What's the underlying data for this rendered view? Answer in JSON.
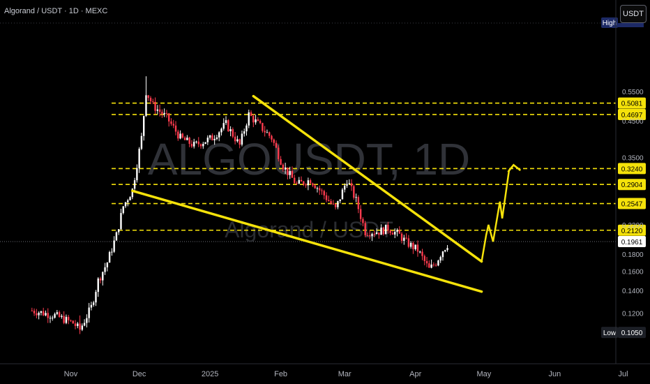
{
  "header": {
    "title": "Algorand / USDT · 1D · MEXC"
  },
  "unit_button": "USDT",
  "watermark": {
    "symbol": "ALGOUSDT, 1D",
    "name": "Algorand / USDT"
  },
  "colors": {
    "up": "#ffffff",
    "down": "#ff3b4e",
    "accent": "#f5e20a",
    "bg": "#000000"
  },
  "chart_data": {
    "type": "candlestick",
    "title": "Algorand / USDT · 1D · MEXC",
    "y_scale": "log",
    "ylim": [
      0.1,
      0.62
    ],
    "y_tick_labels": [
      "0.5500",
      "0.4500",
      "0.3500",
      "0.2200",
      "0.1800",
      "0.1600",
      "0.1400",
      "0.1200"
    ],
    "x_tick_labels": [
      "Nov",
      "Dec",
      "2025",
      "Feb",
      "Mar",
      "Apr",
      "May",
      "Jun",
      "Jul"
    ],
    "price_levels": [
      {
        "label": "0.5081",
        "value": 0.5081
      },
      {
        "label": "0.4697",
        "value": 0.4697
      },
      {
        "label": "0.3240",
        "value": 0.324
      },
      {
        "label": "0.2904",
        "value": 0.2904
      },
      {
        "label": "0.2547",
        "value": 0.2547
      },
      {
        "label": "0.2120",
        "value": 0.212
      }
    ],
    "current_price": {
      "label": "0.1961",
      "value": 0.1961
    },
    "high": {
      "tag": "High",
      "value": 0.611
    },
    "low": {
      "tag": "Low",
      "label": "0.1050",
      "value": 0.105
    },
    "close_path": [
      [
        "2024-10-15",
        0.122
      ],
      [
        "2024-10-25",
        0.118
      ],
      [
        "2024-11-02",
        0.112
      ],
      [
        "2024-11-05",
        0.107
      ],
      [
        "2024-11-10",
        0.125
      ],
      [
        "2024-11-13",
        0.15
      ],
      [
        "2024-11-17",
        0.17
      ],
      [
        "2024-11-21",
        0.205
      ],
      [
        "2024-11-24",
        0.25
      ],
      [
        "2024-11-28",
        0.28
      ],
      [
        "2024-12-02",
        0.4
      ],
      [
        "2024-12-04",
        0.55
      ],
      [
        "2024-12-07",
        0.5
      ],
      [
        "2024-12-13",
        0.46
      ],
      [
        "2024-12-19",
        0.4
      ],
      [
        "2024-12-25",
        0.38
      ],
      [
        "2025-01-02",
        0.4
      ],
      [
        "2025-01-08",
        0.44
      ],
      [
        "2025-01-14",
        0.38
      ],
      [
        "2025-01-18",
        0.47
      ],
      [
        "2025-01-22",
        0.44
      ],
      [
        "2025-01-28",
        0.4
      ],
      [
        "2025-02-02",
        0.33
      ],
      [
        "2025-02-08",
        0.29
      ],
      [
        "2025-02-14",
        0.3
      ],
      [
        "2025-02-20",
        0.27
      ],
      [
        "2025-02-25",
        0.245
      ],
      [
        "2025-03-02",
        0.3
      ],
      [
        "2025-03-06",
        0.26
      ],
      [
        "2025-03-10",
        0.21
      ],
      [
        "2025-03-16",
        0.21
      ],
      [
        "2025-03-20",
        0.215
      ],
      [
        "2025-03-25",
        0.205
      ],
      [
        "2025-03-28",
        0.195
      ],
      [
        "2025-04-02",
        0.185
      ],
      [
        "2025-04-07",
        0.162
      ],
      [
        "2025-04-10",
        0.17
      ],
      [
        "2025-04-13",
        0.185
      ],
      [
        "2025-04-16",
        0.196
      ]
    ],
    "pattern_lines": [
      {
        "role": "falling-wedge-resistance",
        "points": [
          [
            "2025-01-20",
            0.533
          ],
          [
            "2025-04-30",
            0.171
          ]
        ]
      },
      {
        "role": "falling-wedge-support",
        "points": [
          [
            "2024-11-28",
            0.278
          ],
          [
            "2025-04-30",
            0.139
          ]
        ]
      }
    ],
    "projection_path": [
      [
        "2025-04-30",
        0.171
      ],
      [
        "2025-05-02",
        0.205
      ],
      [
        "2025-05-03",
        0.22
      ],
      [
        "2025-05-05",
        0.196
      ],
      [
        "2025-05-08",
        0.258
      ],
      [
        "2025-05-09",
        0.23
      ],
      [
        "2025-05-12",
        0.32
      ],
      [
        "2025-05-14",
        0.332
      ],
      [
        "2025-05-17",
        0.32
      ]
    ]
  }
}
